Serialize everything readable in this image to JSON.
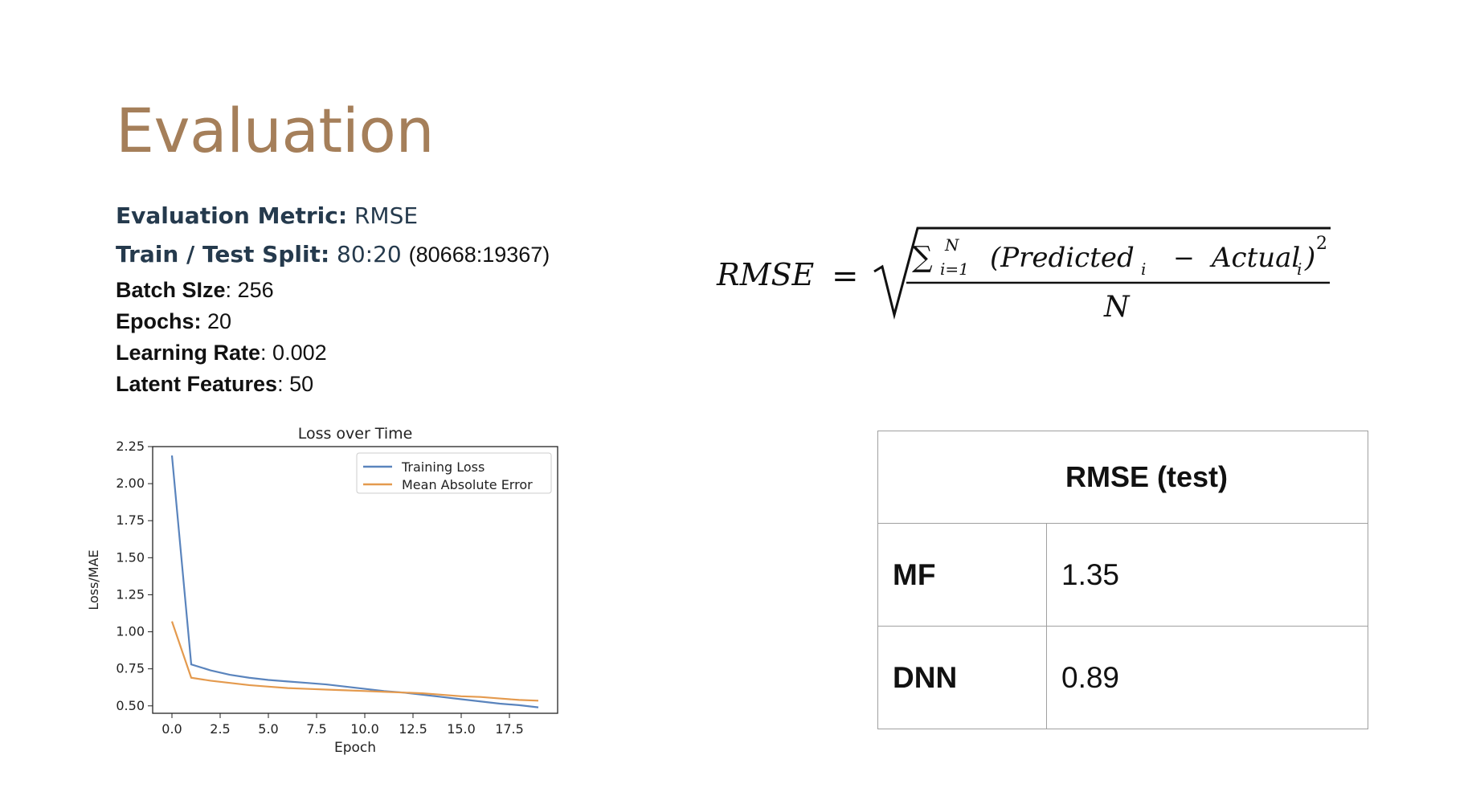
{
  "slide": {
    "title": "Evaluation"
  },
  "params": {
    "metric_label": "Evaluation Metric:",
    "metric_value": "RMSE",
    "split_label": "Train / Test Split:",
    "split_value": "80:20",
    "split_counts": "(80668:19367)",
    "batch_label": "Batch SIze",
    "batch_value": ": 256",
    "epochs_label": "Epochs:",
    "epochs_value": "20",
    "lr_label": "Learning Rate",
    "lr_value": ": 0.002",
    "latent_label": "Latent Features",
    "latent_value": ": 50"
  },
  "formula": {
    "lhs": "RMSE",
    "eq": "=",
    "numerator": "(Predicted",
    "minus": "−",
    "actual": "Actual",
    "denominator": "N",
    "sum": "∑",
    "sum_upper": "N",
    "sum_lower": "i=1",
    "sub_i": "i",
    "power": "2"
  },
  "chart_data": {
    "type": "line",
    "title": "Loss over Time",
    "xlabel": "Epoch",
    "ylabel": "Loss/MAE",
    "xlim": [
      -1,
      20
    ],
    "ylim": [
      0.45,
      2.25
    ],
    "xticks": [
      0.0,
      2.5,
      5.0,
      7.5,
      10.0,
      12.5,
      15.0,
      17.5
    ],
    "xtick_labels": [
      "0.0",
      "2.5",
      "5.0",
      "7.5",
      "10.0",
      "12.5",
      "15.0",
      "17.5"
    ],
    "yticks": [
      0.5,
      0.75,
      1.0,
      1.25,
      1.5,
      1.75,
      2.0,
      2.25
    ],
    "ytick_labels": [
      "0.50",
      "0.75",
      "1.00",
      "1.25",
      "1.50",
      "1.75",
      "2.00",
      "2.25"
    ],
    "legend_position": "top-right",
    "x": [
      0,
      1,
      2,
      3,
      4,
      5,
      6,
      7,
      8,
      9,
      10,
      11,
      12,
      13,
      14,
      15,
      16,
      17,
      18,
      19
    ],
    "series": [
      {
        "name": "Training Loss",
        "color": "#5a84bd",
        "values": [
          2.19,
          0.78,
          0.74,
          0.71,
          0.69,
          0.675,
          0.665,
          0.655,
          0.645,
          0.63,
          0.615,
          0.6,
          0.59,
          0.575,
          0.56,
          0.545,
          0.53,
          0.515,
          0.505,
          0.49
        ]
      },
      {
        "name": "Mean Absolute Error",
        "color": "#e49a4e",
        "values": [
          1.07,
          0.69,
          0.67,
          0.655,
          0.64,
          0.63,
          0.62,
          0.615,
          0.61,
          0.605,
          0.6,
          0.595,
          0.59,
          0.585,
          0.575,
          0.565,
          0.56,
          0.55,
          0.54,
          0.535
        ]
      }
    ]
  },
  "results_table": {
    "header": "RMSE (test)",
    "rows": [
      {
        "model": "MF",
        "value": "1.35"
      },
      {
        "model": "DNN",
        "value": "0.89"
      }
    ]
  }
}
